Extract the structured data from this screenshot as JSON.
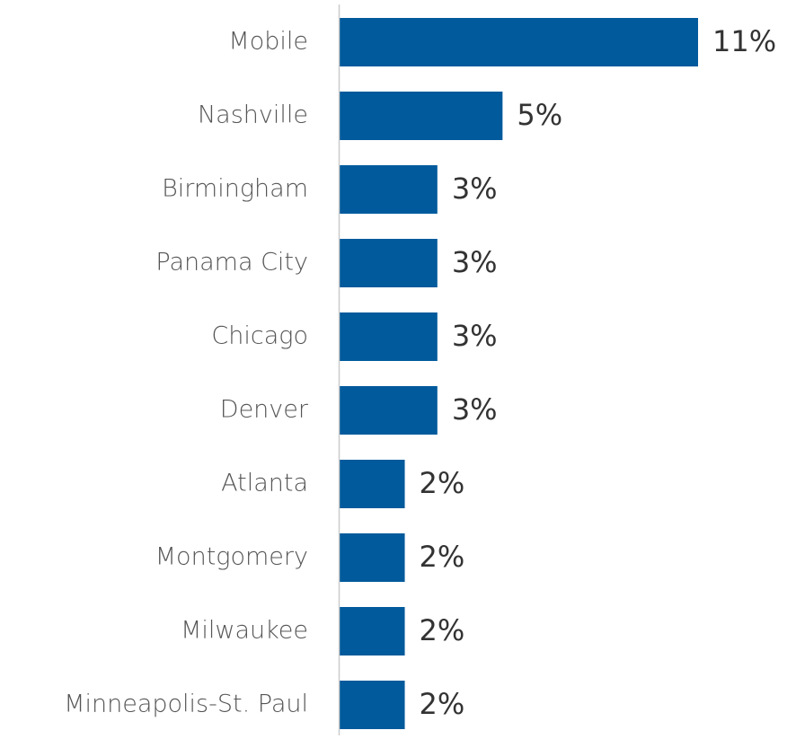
{
  "chart_data": {
    "type": "bar",
    "orientation": "horizontal",
    "categories": [
      "Mobile",
      "Nashville",
      "Birmingham",
      "Panama City",
      "Chicago",
      "Denver",
      "Atlanta",
      "Montgomery",
      "Milwaukee",
      "Minneapolis-St. Paul"
    ],
    "values": [
      11,
      5,
      3,
      3,
      3,
      3,
      2,
      2,
      2,
      2
    ],
    "value_labels": [
      "11%",
      "5%",
      "3%",
      "3%",
      "3%",
      "3%",
      "2%",
      "2%",
      "2%",
      "2%"
    ],
    "color": "#005a9c"
  }
}
